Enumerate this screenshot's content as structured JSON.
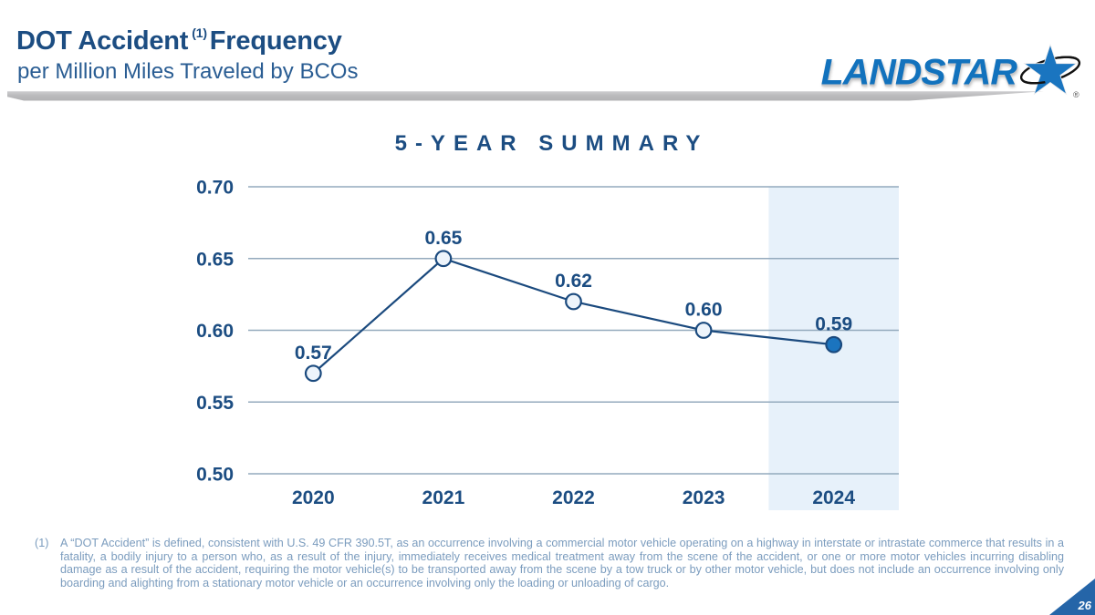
{
  "header": {
    "title_main": "DOT Accident",
    "title_superscript": "(1)",
    "title_tail": "Frequency",
    "subtitle": "per Million Miles Traveled by BCOs"
  },
  "logo": {
    "wordmark": "LANDSTAR",
    "registered_mark": "®",
    "brand_blue": "#1272bd"
  },
  "chart_data": {
    "type": "line",
    "title": "5-YEAR SUMMARY",
    "categories": [
      "2020",
      "2021",
      "2022",
      "2023",
      "2024"
    ],
    "values": [
      0.57,
      0.65,
      0.62,
      0.6,
      0.59
    ],
    "data_labels": [
      "0.57",
      "0.65",
      "0.62",
      "0.60",
      "0.59"
    ],
    "ylim": [
      0.5,
      0.7
    ],
    "ytick_step": 0.05,
    "ytick_labels": [
      "0.50",
      "0.55",
      "0.60",
      "0.65",
      "0.70"
    ],
    "grid": true,
    "legend": "none",
    "highlighted_category": "2024",
    "colors": {
      "line": "#1b4a7e",
      "marker_open_fill": "#edf4fb",
      "marker_filled_fill": "#1b74bf",
      "gridline": "#94aabd",
      "highlight_band": "#e7f1fa",
      "label": "#1c4d82"
    }
  },
  "footnote": {
    "marker": "(1)",
    "text": "A “DOT Accident” is defined, consistent with U.S. 49 CFR 390.5T, as an occurrence involving a commercial motor vehicle operating on a highway in interstate or intrastate commerce that results in a fatality, a bodily injury to a person who, as a result of the injury, immediately receives medical treatment away from the scene of the accident, or one or more motor vehicles incurring disabling damage as a result of the accident, requiring the motor vehicle(s) to be transported away from the scene by a tow truck or by other motor vehicle, but does not include an occurrence involving only boarding and alighting from a stationary motor vehicle or an occurrence involving only the loading or unloading of cargo."
  },
  "page_number": "26"
}
